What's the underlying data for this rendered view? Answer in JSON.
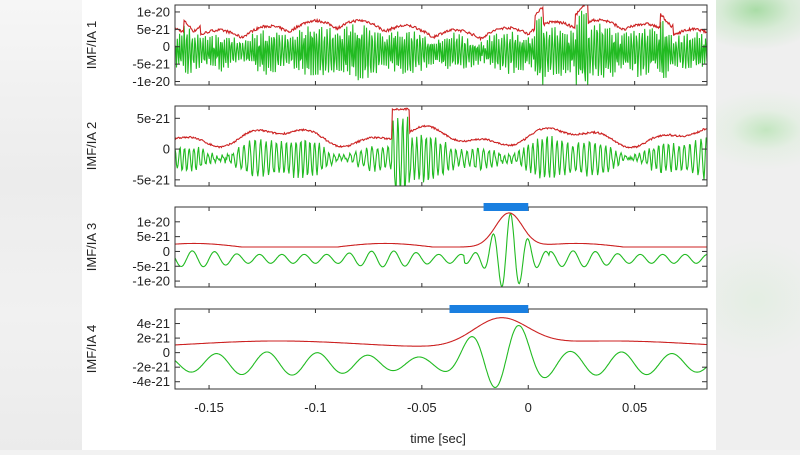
{
  "chart_data": {
    "type": "line",
    "title": "",
    "xlabel": "time [sec]",
    "xlim": [
      -0.166,
      0.084
    ],
    "xticks": [
      -0.15,
      -0.1,
      -0.05,
      0,
      0.05
    ],
    "xtick_labels": [
      "-0.15",
      "-0.1",
      "-0.05",
      "0",
      "0.05"
    ],
    "grid": false,
    "legend": "none",
    "series_colors": {
      "imf": "#22bb22",
      "instantaneous_amplitude": "#cc2222"
    },
    "highlight_color": "#1a7fe0",
    "panels": [
      {
        "ylabel": "IMF/IA 1",
        "ylim": [
          -1.1e-20,
          1.2e-20
        ],
        "yticks": [
          1e-20,
          5e-21,
          0,
          -5e-21,
          -1e-20
        ],
        "ytick_labels": [
          "1e-20",
          "5e-21",
          "0",
          "-5e-21",
          "-1e-20"
        ],
        "description": "High-frequency noise-like oscillation with upper envelope ~5e-21, peaks near 1e-20",
        "highlight": null
      },
      {
        "ylabel": "IMF/IA 2",
        "ylim": [
          -6e-21,
          7e-21
        ],
        "yticks": [
          5e-21,
          0,
          -5e-21
        ],
        "ytick_labels": [
          "5e-21",
          "0",
          "-5e-21"
        ],
        "description": "Mid-frequency oscillation, envelope ~2e-21 to 4e-21, spike ~6.5e-21 near t=-0.06",
        "highlight": null
      },
      {
        "ylabel": "IMF/IA 3",
        "ylim": [
          -1.2e-20,
          1.5e-20
        ],
        "yticks": [
          1e-20,
          5e-21,
          0,
          -5e-21,
          -1e-20
        ],
        "ytick_labels": [
          "1e-20",
          "5e-21",
          "0",
          "-5e-21",
          "-1e-20"
        ],
        "description": "Low-amplitude oscillation with burst peaking ~1.2e-20 near t=-0.01",
        "highlight": {
          "x_start": -0.021,
          "x_end": 0.0
        }
      },
      {
        "ylabel": "IMF/IA 4",
        "ylim": [
          -5e-21,
          6e-21
        ],
        "yticks": [
          4e-21,
          2e-21,
          0,
          -2e-21,
          -4e-21
        ],
        "ytick_labels": [
          "4e-21",
          "2e-21",
          "0",
          "-2e-21",
          "-4e-21"
        ],
        "description": "Slow oscillation, envelope ~1.5e-21, burst peaking ~5e-21 near t=-0.015",
        "highlight": {
          "x_start": -0.037,
          "x_end": 0.0
        }
      }
    ]
  }
}
